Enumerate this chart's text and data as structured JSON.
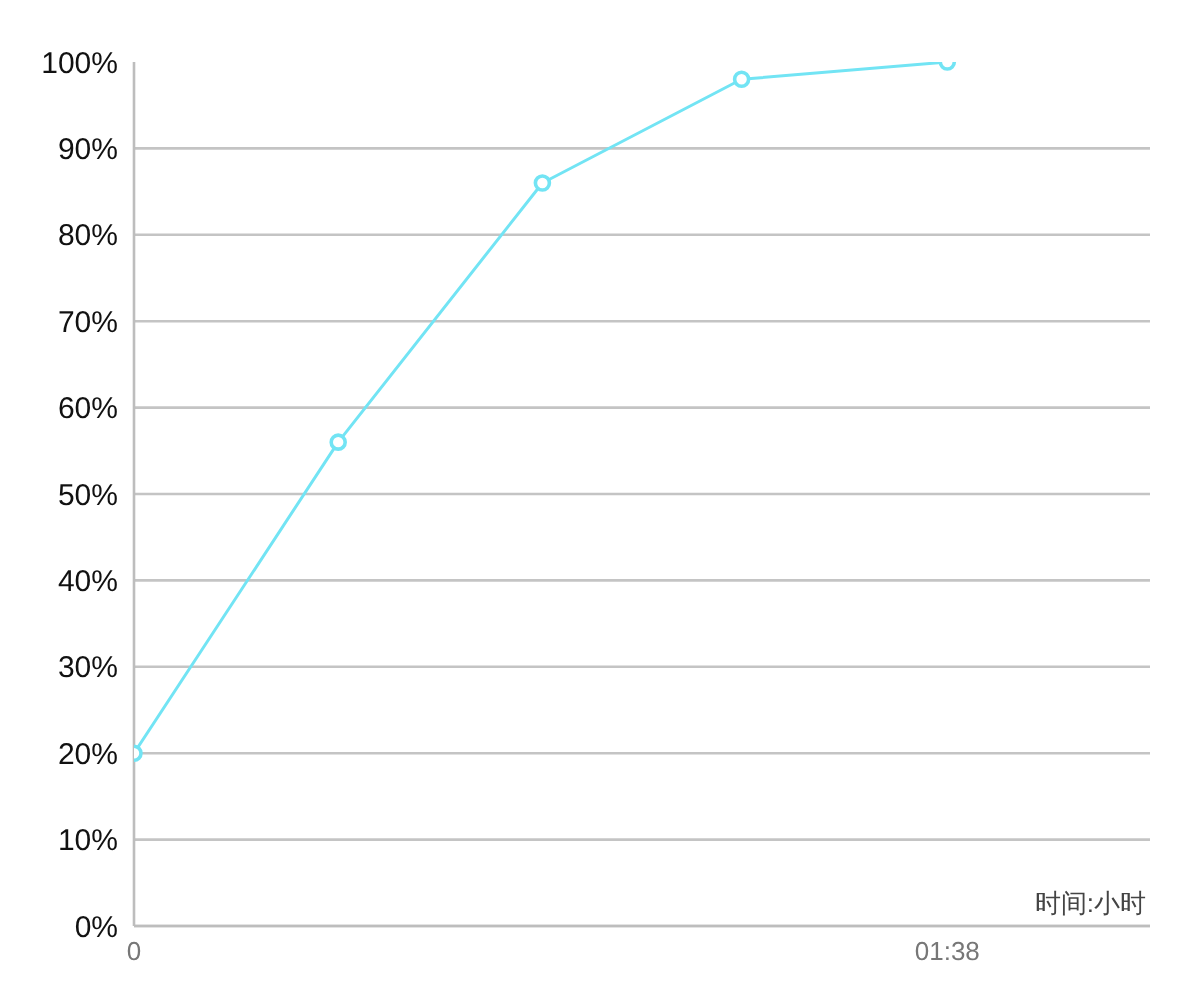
{
  "chart_data": {
    "type": "line",
    "xlabel": "时间:小时",
    "x": [
      0,
      0.41,
      0.82,
      1.22,
      1.633
    ],
    "series": [
      {
        "color": "#72e4f4",
        "values": [
          20,
          56,
          86,
          98,
          100
        ]
      }
    ],
    "xlim": [
      0,
      2.04
    ],
    "xticks": [
      {
        "value": 0,
        "label": "0"
      },
      {
        "value": 1.633,
        "label": "01:38"
      }
    ],
    "ylim": [
      0,
      100
    ],
    "yticks": [
      {
        "value": 0,
        "label": "0%"
      },
      {
        "value": 10,
        "label": "10%"
      },
      {
        "value": 20,
        "label": "20%"
      },
      {
        "value": 30,
        "label": "30%"
      },
      {
        "value": 40,
        "label": "40%"
      },
      {
        "value": 50,
        "label": "50%"
      },
      {
        "value": 60,
        "label": "60%"
      },
      {
        "value": 70,
        "label": "70%"
      },
      {
        "value": 80,
        "label": "80%"
      },
      {
        "value": 90,
        "label": "90%"
      },
      {
        "value": 100,
        "label": "100%"
      }
    ],
    "grid": "y",
    "marker": "circle",
    "line_style": "solid"
  }
}
